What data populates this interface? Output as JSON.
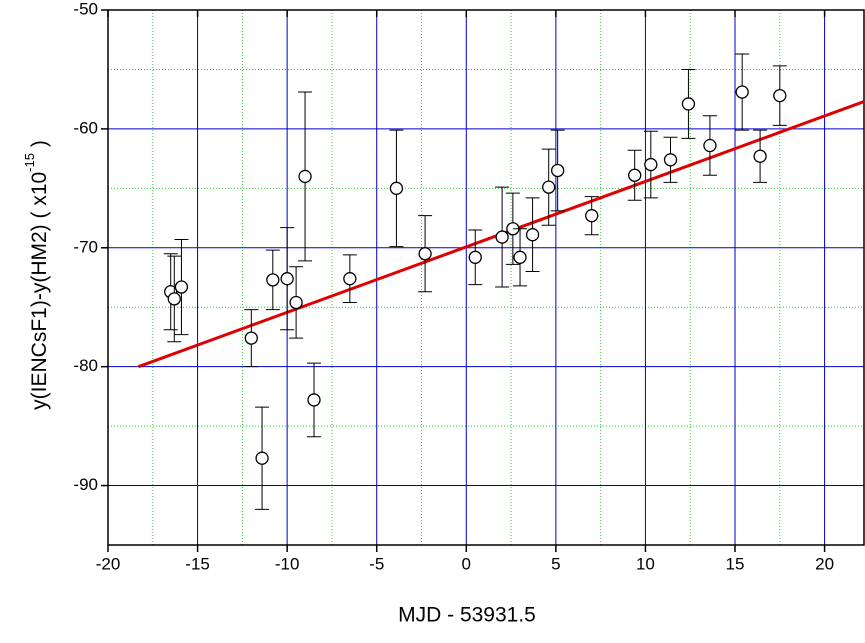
{
  "chart_data": {
    "type": "scatter",
    "xlabel": "MJD - 53931.5",
    "ylabel": "y(IENCsF1)-y(HM2)  ( x10",
    "ylabel_superscript": "-15",
    "ylabel_end": " )",
    "xlim": [
      -20,
      22.2
    ],
    "ylim": [
      -95,
      -50
    ],
    "xticks": [
      -20,
      -15,
      -10,
      -5,
      0,
      5,
      10,
      15,
      20
    ],
    "yticks": [
      -90,
      -80,
      -70,
      -60,
      -50
    ],
    "grid": true,
    "major_grid_color": "#0000cc",
    "minor_grid_color": "#33cc33",
    "series": [
      {
        "color": "#000000",
        "x": [
          -16.5,
          -16.3,
          -15.9,
          -12.0,
          -11.4,
          -10.8,
          -10.0,
          -9.5,
          -9.0,
          -8.5,
          -6.5,
          -3.9,
          -2.3,
          0.5,
          2.0,
          2.6,
          3.0,
          3.7,
          4.6,
          5.1,
          7.0,
          9.4,
          10.3,
          11.4,
          12.4,
          13.6,
          15.4,
          16.4,
          17.5
        ],
        "values": [
          -73.7,
          -74.3,
          -73.3,
          -77.6,
          -87.7,
          -72.7,
          -72.6,
          -74.6,
          -64.0,
          -82.8,
          -72.6,
          -65.0,
          -70.5,
          -70.8,
          -69.1,
          -68.4,
          -70.8,
          -68.9,
          -64.9,
          -63.5,
          -67.3,
          -63.9,
          -63.0,
          -62.6,
          -57.9,
          -61.4,
          -56.9,
          -62.3,
          -57.2
        ],
        "errors": [
          3.2,
          3.6,
          4.0,
          2.4,
          4.3,
          2.5,
          4.3,
          3.0,
          7.1,
          3.1,
          2.0,
          4.9,
          3.2,
          2.3,
          4.2,
          3.0,
          2.4,
          3.1,
          3.2,
          3.4,
          1.6,
          2.1,
          2.8,
          1.9,
          2.9,
          2.5,
          3.2,
          2.2,
          2.5
        ]
      }
    ],
    "fit": {
      "color": "#e00000",
      "x": [
        -18.3,
        22.2
      ],
      "values": [
        -80.0,
        -57.7
      ]
    }
  }
}
